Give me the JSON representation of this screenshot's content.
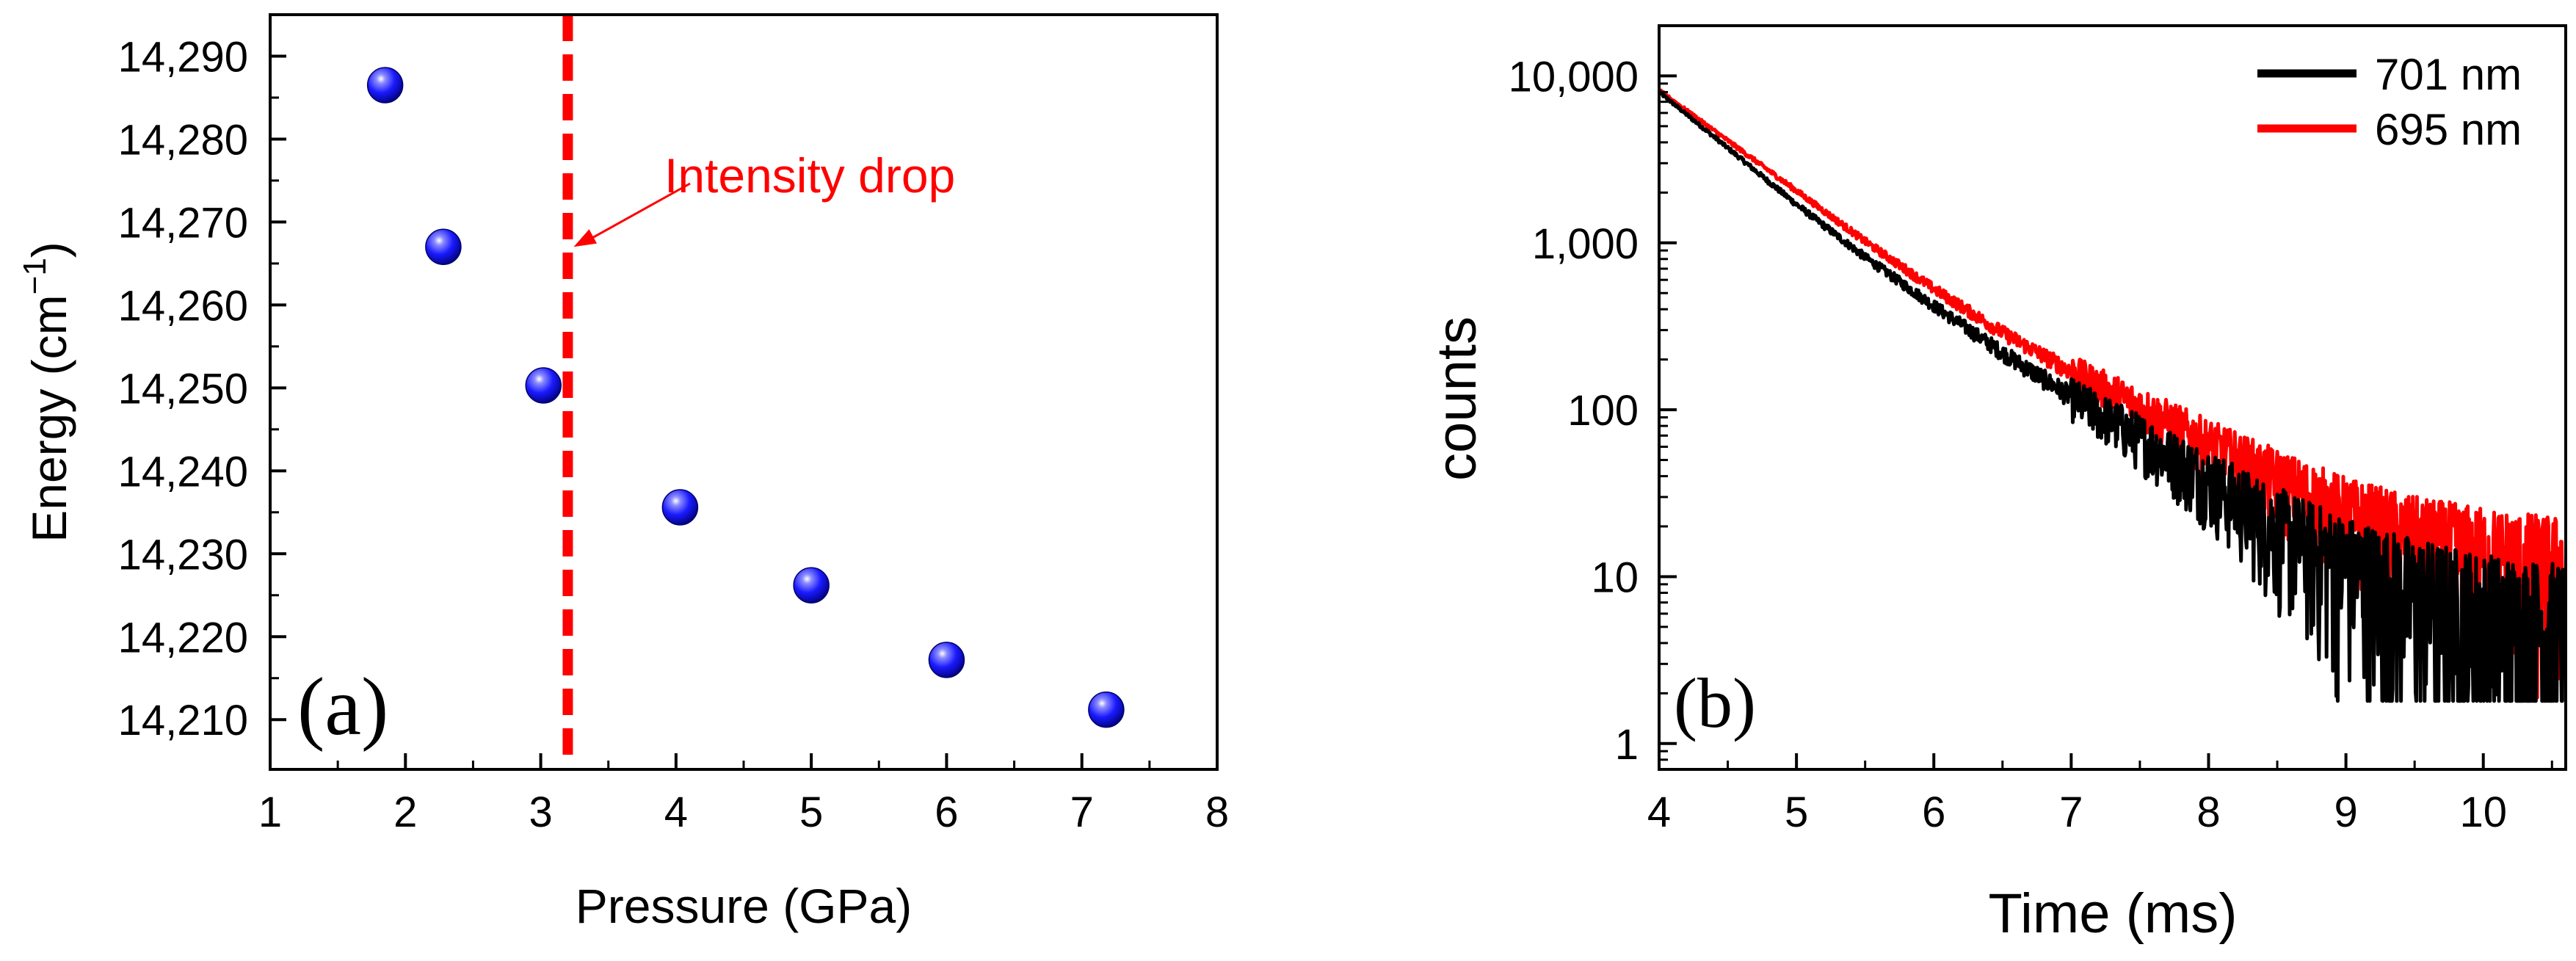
{
  "colors": {
    "axis": "#000000",
    "marker": "#1a1aff",
    "marker_highlight": "#ffffff",
    "annotation": "#ff0000",
    "series_701": "#000000",
    "series_695": "#ff0000"
  },
  "chart_data": [
    {
      "type": "scatter",
      "panel_label": "(a)",
      "xlabel": "Pressure (GPa)",
      "ylabel_main": "Energy (cm",
      "ylabel_sup": "−1",
      "ylabel_close": ")",
      "xlim": [
        1,
        8
      ],
      "ylim": [
        14204,
        14295
      ],
      "x_ticks": [
        1,
        2,
        3,
        4,
        5,
        6,
        7,
        8
      ],
      "x_tick_labels": [
        "1",
        "2",
        "3",
        "4",
        "5",
        "6",
        "7",
        "8"
      ],
      "y_ticks": [
        14210,
        14220,
        14230,
        14240,
        14250,
        14260,
        14270,
        14280,
        14290
      ],
      "y_tick_labels": [
        "14,210",
        "14,220",
        "14,230",
        "14,240",
        "14,250",
        "14,260",
        "14,270",
        "14,280",
        "14,290"
      ],
      "points": [
        {
          "x": 1.85,
          "y": 14286.5
        },
        {
          "x": 2.28,
          "y": 14267.0
        },
        {
          "x": 3.02,
          "y": 14250.3
        },
        {
          "x": 4.03,
          "y": 14235.6
        },
        {
          "x": 5.0,
          "y": 14226.2
        },
        {
          "x": 6.0,
          "y": 14217.2
        },
        {
          "x": 7.18,
          "y": 14211.2
        }
      ],
      "vline": {
        "x": 3.2,
        "style": "dashed"
      },
      "annotation": {
        "text": "Intensity drop",
        "target": {
          "x": 3.2,
          "y": 14267
        }
      }
    },
    {
      "type": "line",
      "panel_label": "(b)",
      "xlabel": "Time (ms)",
      "ylabel": "counts",
      "yscale": "log",
      "xlim": [
        4,
        10.6
      ],
      "ylim": [
        0.7,
        20000
      ],
      "x_ticks": [
        4,
        5,
        6,
        7,
        8,
        9,
        10
      ],
      "x_tick_labels": [
        "4",
        "5",
        "6",
        "7",
        "8",
        "9",
        "10"
      ],
      "y_ticks": [
        1,
        10,
        100,
        1000,
        10000
      ],
      "y_tick_labels": [
        "1",
        "10",
        "100",
        "1,000",
        "10,000"
      ],
      "legend_position": "top-right",
      "series": [
        {
          "name": "701 nm",
          "x": [
            4.0,
            4.5,
            5.0,
            5.5,
            6.0,
            6.5,
            7.0,
            7.5,
            8.0,
            8.5,
            9.0,
            9.5,
            10.0,
            10.5
          ],
          "y": [
            8000,
            3700,
            1700,
            820,
            420,
            220,
            120,
            68,
            38,
            20,
            12,
            8,
            6,
            5
          ],
          "noise_from_x": 7.0
        },
        {
          "name": "695 nm",
          "x": [
            4.0,
            4.5,
            5.0,
            5.5,
            6.0,
            6.5,
            7.0,
            7.5,
            8.0,
            8.5,
            9.0,
            9.5,
            10.0,
            10.5
          ],
          "y": [
            8200,
            4100,
            2050,
            1020,
            530,
            290,
            170,
            105,
            62,
            38,
            24,
            17,
            14,
            12
          ],
          "noise_from_x": 7.0
        }
      ]
    }
  ]
}
